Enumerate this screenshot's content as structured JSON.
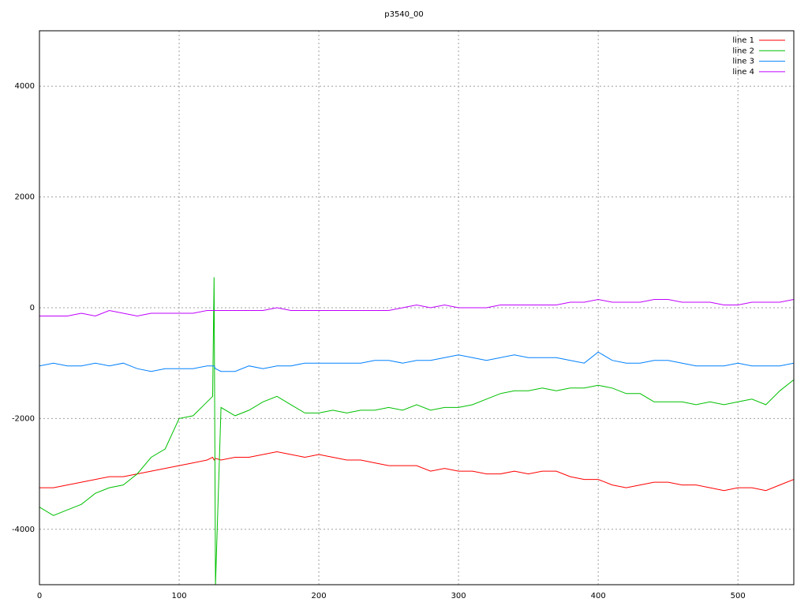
{
  "chart_data": {
    "type": "line",
    "title": "p3540_00",
    "x": [
      0,
      10,
      20,
      30,
      40,
      50,
      60,
      70,
      80,
      90,
      100,
      110,
      120,
      124,
      125,
      126,
      130,
      140,
      150,
      160,
      170,
      180,
      190,
      200,
      210,
      220,
      230,
      240,
      250,
      260,
      270,
      280,
      290,
      300,
      310,
      320,
      330,
      340,
      350,
      360,
      370,
      380,
      390,
      400,
      410,
      420,
      430,
      440,
      450,
      460,
      470,
      480,
      490,
      500,
      510,
      520,
      530,
      540
    ],
    "series": [
      {
        "name": "line 1",
        "color": "#ff0000",
        "values": [
          -3250,
          -3250,
          -3200,
          -3150,
          -3100,
          -3050,
          -3050,
          -3000,
          -2950,
          -2900,
          -2850,
          -2800,
          -2750,
          -2700,
          -2750,
          -2720,
          -2750,
          -2700,
          -2700,
          -2650,
          -2600,
          -2650,
          -2700,
          -2650,
          -2700,
          -2750,
          -2750,
          -2800,
          -2850,
          -2850,
          -2850,
          -2950,
          -2900,
          -2950,
          -2950,
          -3000,
          -3000,
          -2950,
          -3000,
          -2950,
          -2950,
          -3050,
          -3100,
          -3100,
          -3200,
          -3250,
          -3200,
          -3150,
          -3150,
          -3200,
          -3200,
          -3250,
          -3300,
          -3250,
          -3250,
          -3300,
          -3200,
          -3100
        ]
      },
      {
        "name": "line 2",
        "color": "#00c000",
        "values": [
          -3600,
          -3750,
          -3650,
          -3550,
          -3350,
          -3250,
          -3200,
          -3000,
          -2700,
          -2550,
          -2000,
          -1950,
          -1700,
          -1600,
          550,
          -5000,
          -1800,
          -1950,
          -1850,
          -1700,
          -1600,
          -1750,
          -1900,
          -1900,
          -1850,
          -1900,
          -1850,
          -1850,
          -1800,
          -1850,
          -1750,
          -1850,
          -1800,
          -1800,
          -1750,
          -1650,
          -1550,
          -1500,
          -1500,
          -1450,
          -1500,
          -1450,
          -1450,
          -1400,
          -1450,
          -1550,
          -1550,
          -1700,
          -1700,
          -1700,
          -1750,
          -1700,
          -1750,
          -1700,
          -1650,
          -1750,
          -1500,
          -1300
        ]
      },
      {
        "name": "line 3",
        "color": "#0080ff",
        "values": [
          -1050,
          -1000,
          -1050,
          -1050,
          -1000,
          -1050,
          -1000,
          -1100,
          -1150,
          -1100,
          -1100,
          -1100,
          -1050,
          -1050,
          -1050,
          -1100,
          -1150,
          -1150,
          -1050,
          -1100,
          -1050,
          -1050,
          -1000,
          -1000,
          -1000,
          -1000,
          -1000,
          -950,
          -950,
          -1000,
          -950,
          -950,
          -900,
          -850,
          -900,
          -950,
          -900,
          -850,
          -900,
          -900,
          -900,
          -950,
          -1000,
          -800,
          -950,
          -1000,
          -1000,
          -950,
          -950,
          -1000,
          -1050,
          -1050,
          -1050,
          -1000,
          -1050,
          -1050,
          -1050,
          -1000
        ]
      },
      {
        "name": "line 4",
        "color": "#c000ff",
        "values": [
          -150,
          -150,
          -150,
          -100,
          -150,
          -50,
          -100,
          -150,
          -100,
          -100,
          -100,
          -100,
          -50,
          -50,
          -50,
          -50,
          -50,
          -50,
          -50,
          -50,
          0,
          -50,
          -50,
          -50,
          -50,
          -50,
          -50,
          -50,
          -50,
          0,
          50,
          0,
          50,
          0,
          0,
          0,
          50,
          50,
          50,
          50,
          50,
          100,
          100,
          150,
          100,
          100,
          100,
          150,
          150,
          100,
          100,
          100,
          50,
          50,
          100,
          100,
          100,
          150
        ]
      }
    ],
    "xlim": [
      0,
      540
    ],
    "ylim": [
      -5000,
      5000
    ],
    "xticks": [
      0,
      100,
      200,
      300,
      400,
      500
    ],
    "yticks": [
      -4000,
      -2000,
      0,
      2000,
      4000
    ],
    "grid": true,
    "legend": "top-right"
  }
}
